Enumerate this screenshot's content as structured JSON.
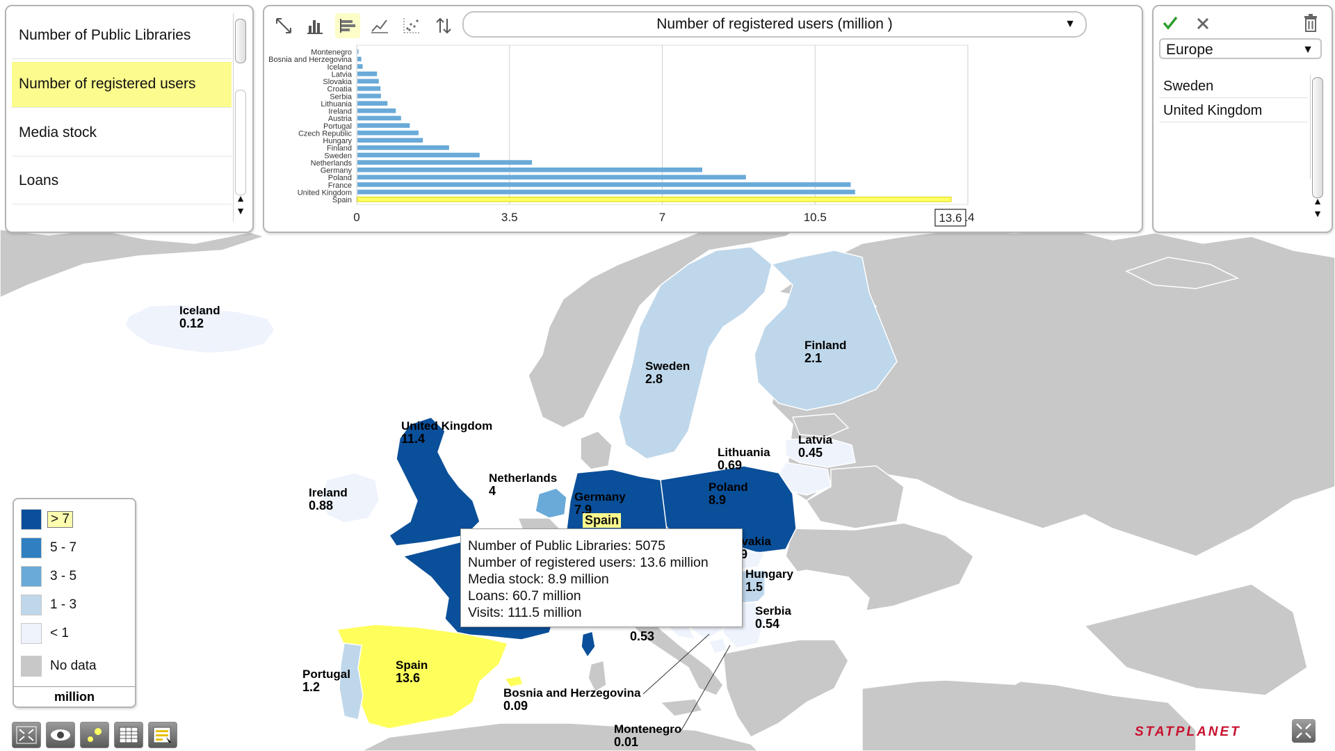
{
  "indicators": {
    "items": [
      {
        "label": "Number of Public Libraries",
        "selected": false
      },
      {
        "label": "Number of registered users",
        "selected": true
      },
      {
        "label": "Media stock",
        "selected": false
      },
      {
        "label": "Loans",
        "selected": false
      }
    ]
  },
  "chart": {
    "selected_indicator": "Number of registered users (million )",
    "toolbar": [
      "expand-icon",
      "bar-chart-icon",
      "horizontal-bar-chart-icon",
      "line-chart-icon",
      "scatter-plot-icon",
      "sort-icon"
    ],
    "active_tool": "horizontal-bar-chart-icon"
  },
  "chart_data": {
    "type": "bar",
    "orientation": "horizontal",
    "categories": [
      "Montenegro",
      "Bosnia and Herzegovina",
      "Iceland",
      "Latvia",
      "Slovakia",
      "Croatia",
      "Serbia",
      "Lithuania",
      "Ireland",
      "Austria",
      "Portugal",
      "Czech Republic",
      "Hungary",
      "Finland",
      "Sweden",
      "Netherlands",
      "Germany",
      "Poland",
      "France",
      "United Kingdom",
      "Spain"
    ],
    "values": [
      0.01,
      0.09,
      0.12,
      0.45,
      0.49,
      0.53,
      0.54,
      0.69,
      0.88,
      1.0,
      1.2,
      1.4,
      1.5,
      2.1,
      2.8,
      4.0,
      7.9,
      8.9,
      11.3,
      11.4,
      13.6
    ],
    "highlighted": "Spain",
    "highlight_value_label": "13.6",
    "xlim": [
      0,
      14
    ],
    "xticks": [
      "0",
      "3.5",
      "7",
      "10.5",
      "14"
    ],
    "grid": true,
    "bar_color": "#6aaad8",
    "highlight_color": "#ffff66"
  },
  "selection": {
    "region": "Europe",
    "items": [
      "Sweden",
      "United Kingdom"
    ],
    "actions": [
      "check-icon",
      "close-icon",
      "trash-icon"
    ]
  },
  "map": {
    "labels": [
      {
        "name": "Iceland",
        "value": "0.12"
      },
      {
        "name": "Sweden",
        "value": "2.8"
      },
      {
        "name": "Finland",
        "value": "2.1"
      },
      {
        "name": "United Kingdom",
        "value": "11.4"
      },
      {
        "name": "Lithuania",
        "value": "0.69"
      },
      {
        "name": "Latvia",
        "value": "0.45"
      },
      {
        "name": "Ireland",
        "value": "0.88"
      },
      {
        "name": "Netherlands",
        "value": "4"
      },
      {
        "name": "Germany",
        "value": "7.9"
      },
      {
        "name": "Poland",
        "value": "8.9"
      },
      {
        "name": "Slovakia",
        "value": "0.49"
      },
      {
        "name": "Hungary",
        "value": "1.5"
      },
      {
        "name": "Serbia",
        "value": "0.54"
      },
      {
        "name": "Croatia",
        "value": "0.53"
      },
      {
        "name": "Portugal",
        "value": "1.2"
      },
      {
        "name": "Spain",
        "value": "13.6"
      },
      {
        "name": "Bosnia and Herzegovina",
        "value": "0.09"
      },
      {
        "name": "Montenegro",
        "value": "0.01"
      }
    ],
    "hover_country": "Spain"
  },
  "tooltip": {
    "lines": [
      "Number of Public Libraries: 5075",
      "Number of registered users: 13.6 million",
      "Media stock: 8.9 million",
      "Loans: 60.7 million",
      "Visits: 111.5 million"
    ]
  },
  "legend": {
    "items": [
      {
        "label": "> 7",
        "color": "#0a4f9a",
        "highlighted": true
      },
      {
        "label": "5 - 7",
        "color": "#2f7fc1"
      },
      {
        "label": "3 - 5",
        "color": "#6aaad8"
      },
      {
        "label": "1 - 3",
        "color": "#bfd7ea"
      },
      {
        "label": "< 1",
        "color": "#eef3fc"
      },
      {
        "label": "No data",
        "color": "#c8c8c8"
      }
    ],
    "unit": "million"
  },
  "bottom_toolbar": [
    "fit-map-icon",
    "eye-icon",
    "bubble-icon",
    "table-icon",
    "legend-settings-icon"
  ],
  "brand": "STATPLANET"
}
